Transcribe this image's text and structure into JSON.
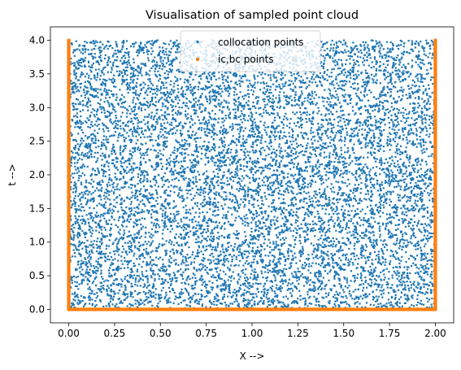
{
  "chart_data": {
    "type": "scatter",
    "title": "Visualisation of sampled point cloud",
    "xlabel": "X -->",
    "ylabel": "t -->",
    "xlim": [
      -0.1,
      2.1
    ],
    "ylim": [
      -0.2,
      4.2
    ],
    "xticks": [
      0.0,
      0.25,
      0.5,
      0.75,
      1.0,
      1.25,
      1.5,
      1.75,
      2.0
    ],
    "xtick_labels": [
      "0.00",
      "0.25",
      "0.50",
      "0.75",
      "1.00",
      "1.25",
      "1.50",
      "1.75",
      "2.00"
    ],
    "yticks": [
      0.0,
      0.5,
      1.0,
      1.5,
      2.0,
      2.5,
      3.0,
      3.5,
      4.0
    ],
    "ytick_labels": [
      "0.0",
      "0.5",
      "1.0",
      "1.5",
      "2.0",
      "2.5",
      "3.0",
      "3.5",
      "4.0"
    ],
    "legend_position": "top-center",
    "series": [
      {
        "name": "collocation points",
        "color": "#1f77b4",
        "distribution": "uniform random",
        "count": 10000,
        "x_range": [
          0.0,
          2.0
        ],
        "t_range": [
          0.0,
          4.0
        ]
      },
      {
        "name": "ic,bc points",
        "color": "#ff7f0e",
        "boundaries": [
          {
            "label": "initial condition",
            "x_range": [
              0.0,
              2.0
            ],
            "t": 0.0
          },
          {
            "label": "left boundary",
            "x": 0.0,
            "t_range": [
              0.0,
              4.0
            ]
          },
          {
            "label": "right boundary",
            "x": 2.0,
            "t_range": [
              0.0,
              4.0
            ]
          }
        ]
      }
    ]
  }
}
